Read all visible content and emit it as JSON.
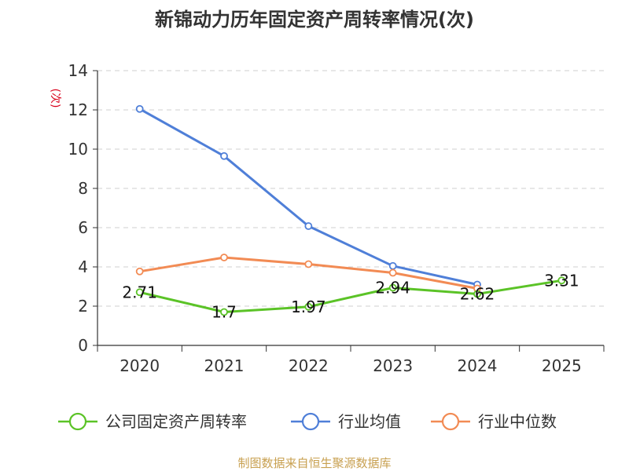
{
  "chart_data": {
    "type": "line",
    "title": "新锦动力历年固定资产周转率情况(次)",
    "ylabel": "(次)",
    "xlabel": "",
    "ylim": [
      0,
      14
    ],
    "yticks": [
      "0",
      "2",
      "4",
      "6",
      "8",
      "10",
      "12",
      "14"
    ],
    "categories": [
      "2020",
      "2021",
      "2022",
      "2023",
      "2024",
      "2025"
    ],
    "grid": true,
    "legend_position": "bottom",
    "series": [
      {
        "name": "公司固定资产周转率",
        "color": "#5bc327",
        "values": [
          2.71,
          1.7,
          1.97,
          2.94,
          2.62,
          3.31
        ],
        "labels": [
          "2.71",
          "1.7",
          "1.97",
          "2.94",
          "2.62",
          "3.31"
        ]
      },
      {
        "name": "行业均值",
        "color": "#4f7fd8",
        "values": [
          12.05,
          9.65,
          6.08,
          4.05,
          3.1,
          null
        ]
      },
      {
        "name": "行业中位数",
        "color": "#f28b54",
        "values": [
          3.77,
          4.48,
          4.14,
          3.7,
          2.9,
          null
        ]
      }
    ],
    "source": "制图数据来自恒生聚源数据库"
  }
}
